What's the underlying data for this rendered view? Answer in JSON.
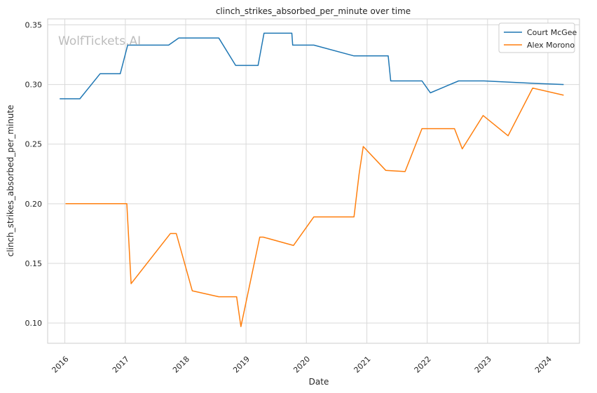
{
  "chart_data": {
    "type": "line",
    "title": "clinch_strikes_absorbed_per_minute over time",
    "xlabel": "Date",
    "ylabel": "clinch_strikes_absorbed_per_minute",
    "watermark": "WolfTickets.AI",
    "x_ticks": [
      "2016",
      "2017",
      "2018",
      "2019",
      "2020",
      "2021",
      "2022",
      "2023",
      "2024"
    ],
    "y_ticks": [
      "0.10",
      "0.15",
      "0.20",
      "0.25",
      "0.30",
      "0.35"
    ],
    "ylim": [
      0.083,
      0.355
    ],
    "xlim": [
      "2015-09-19",
      "2024-07-10"
    ],
    "grid": true,
    "legend_position": "top-right",
    "series": [
      {
        "name": "Court McGee",
        "color": "#1f77b4",
        "points": [
          [
            "2015-12-01",
            0.288
          ],
          [
            "2016-04-01",
            0.288
          ],
          [
            "2016-08-01",
            0.309
          ],
          [
            "2016-12-01",
            0.309
          ],
          [
            "2017-01-15",
            0.333
          ],
          [
            "2017-09-20",
            0.333
          ],
          [
            "2017-11-20",
            0.339
          ],
          [
            "2018-07-20",
            0.339
          ],
          [
            "2018-10-30",
            0.316
          ],
          [
            "2019-03-15",
            0.316
          ],
          [
            "2019-04-20",
            0.343
          ],
          [
            "2019-10-05",
            0.343
          ],
          [
            "2019-10-10",
            0.333
          ],
          [
            "2020-02-15",
            0.333
          ],
          [
            "2020-10-15",
            0.324
          ],
          [
            "2021-05-10",
            0.324
          ],
          [
            "2021-05-25",
            0.303
          ],
          [
            "2021-11-30",
            0.303
          ],
          [
            "2022-01-20",
            0.293
          ],
          [
            "2022-07-10",
            0.303
          ],
          [
            "2022-12-10",
            0.303
          ],
          [
            "2023-10-01",
            0.301
          ],
          [
            "2024-04-05",
            0.3
          ]
        ]
      },
      {
        "name": "Alex Morono",
        "color": "#ff7f0e",
        "points": [
          [
            "2016-01-05",
            0.2
          ],
          [
            "2017-01-10",
            0.2
          ],
          [
            "2017-02-05",
            0.133
          ],
          [
            "2017-09-30",
            0.175
          ],
          [
            "2017-11-05",
            0.175
          ],
          [
            "2018-02-10",
            0.127
          ],
          [
            "2018-07-20",
            0.122
          ],
          [
            "2018-11-05",
            0.122
          ],
          [
            "2018-12-01",
            0.097
          ],
          [
            "2019-03-25",
            0.172
          ],
          [
            "2019-04-15",
            0.172
          ],
          [
            "2019-10-15",
            0.165
          ],
          [
            "2020-02-15",
            0.189
          ],
          [
            "2020-10-15",
            0.189
          ],
          [
            "2020-11-15",
            0.225
          ],
          [
            "2020-12-10",
            0.248
          ],
          [
            "2021-04-25",
            0.228
          ],
          [
            "2021-08-20",
            0.227
          ],
          [
            "2021-11-30",
            0.263
          ],
          [
            "2022-06-15",
            0.263
          ],
          [
            "2022-08-01",
            0.246
          ],
          [
            "2022-12-05",
            0.274
          ],
          [
            "2023-05-05",
            0.257
          ],
          [
            "2023-10-01",
            0.297
          ],
          [
            "2024-04-05",
            0.291
          ]
        ]
      }
    ]
  }
}
